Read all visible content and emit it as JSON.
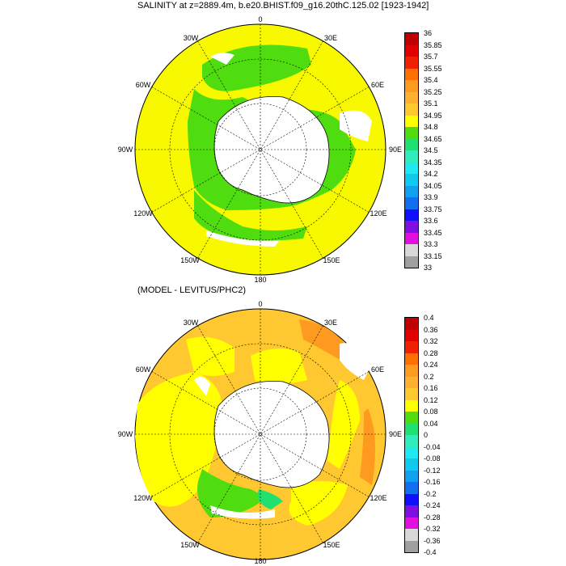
{
  "panel1": {
    "title": "SALINITY at z=2889.4m, b.e20.BHIST.f09_g16.20thC.125.02 [1923-1942]",
    "colorbar": {
      "labels": [
        "36",
        "35.85",
        "35.7",
        "35.55",
        "35.4",
        "35.25",
        "35.1",
        "34.95",
        "34.8",
        "34.65",
        "34.5",
        "34.35",
        "34.2",
        "34.05",
        "33.9",
        "33.75",
        "33.6",
        "33.45",
        "33.3",
        "33.15",
        "33"
      ]
    }
  },
  "panel2": {
    "title": "(MODEL - LEVITUS/PHC2)",
    "colorbar": {
      "labels": [
        "0.4",
        "0.36",
        "0.32",
        "0.28",
        "0.24",
        "0.2",
        "0.16",
        "0.12",
        "0.08",
        "0.04",
        "0",
        "-0.04",
        "-0.08",
        "-0.12",
        "-0.16",
        "-0.2",
        "-0.24",
        "-0.28",
        "-0.32",
        "-0.36",
        "-0.4"
      ]
    }
  },
  "longitude_labels": [
    "0",
    "30E",
    "60E",
    "90E",
    "120E",
    "150E",
    "180",
    "150W",
    "120W",
    "90W",
    "60W",
    "30W"
  ],
  "colors": {
    "scale": [
      "#c00000",
      "#e00000",
      "#f02000",
      "#ff7000",
      "#ff9a20",
      "#ffb030",
      "#ffc830",
      "#ffff00",
      "#50dd10",
      "#20e070",
      "#30eebb",
      "#20e8f0",
      "#10c8f0",
      "#10a0f0",
      "#1070f0",
      "#1010ff",
      "#8010e0",
      "#e010e0",
      "#d8d8d8",
      "#a0a0a0"
    ],
    "ocean_panel1": "#f8f800",
    "ocean_panel2": "#ffc830"
  }
}
